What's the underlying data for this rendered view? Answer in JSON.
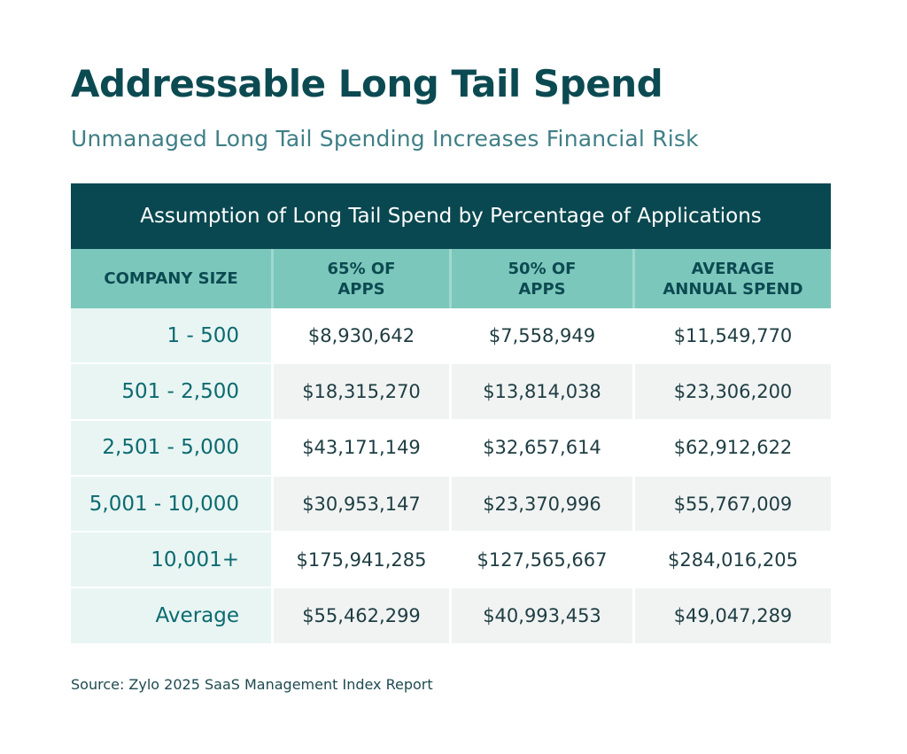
{
  "title": "Addressable Long Tail Spend",
  "subtitle": "Unmanaged Long Tail Spending Increases Financial Risk",
  "table": {
    "caption": "Assumption of Long Tail Spend by Percentage of Applications",
    "columns": [
      "COMPANY SIZE",
      "65% OF\nAPPS",
      "50% OF\nAPPS",
      "AVERAGE\nANNUAL SPEND"
    ],
    "rows": [
      {
        "label": "1 - 500",
        "values": [
          "$8,930,642",
          "$7,558,949",
          "$11,549,770"
        ]
      },
      {
        "label": "501 - 2,500",
        "values": [
          "$18,315,270",
          "$13,814,038",
          "$23,306,200"
        ]
      },
      {
        "label": "2,501 - 5,000",
        "values": [
          "$43,171,149",
          "$32,657,614",
          "$62,912,622"
        ]
      },
      {
        "label": "5,001 - 10,000",
        "values": [
          "$30,953,147",
          "$23,370,996",
          "$55,767,009"
        ]
      },
      {
        "label": "10,001+",
        "values": [
          "$175,941,285",
          "$127,565,667",
          "$284,016,205"
        ]
      },
      {
        "label": "Average",
        "values": [
          "$55,462,299",
          "$40,993,453",
          "$49,047,289"
        ]
      }
    ]
  },
  "source": "Source: Zylo 2025 SaaS Management Index Report",
  "colors": {
    "dark_teal": "#094850",
    "header_teal": "#7cc7bb",
    "label_bg": "#e8f5f3"
  }
}
